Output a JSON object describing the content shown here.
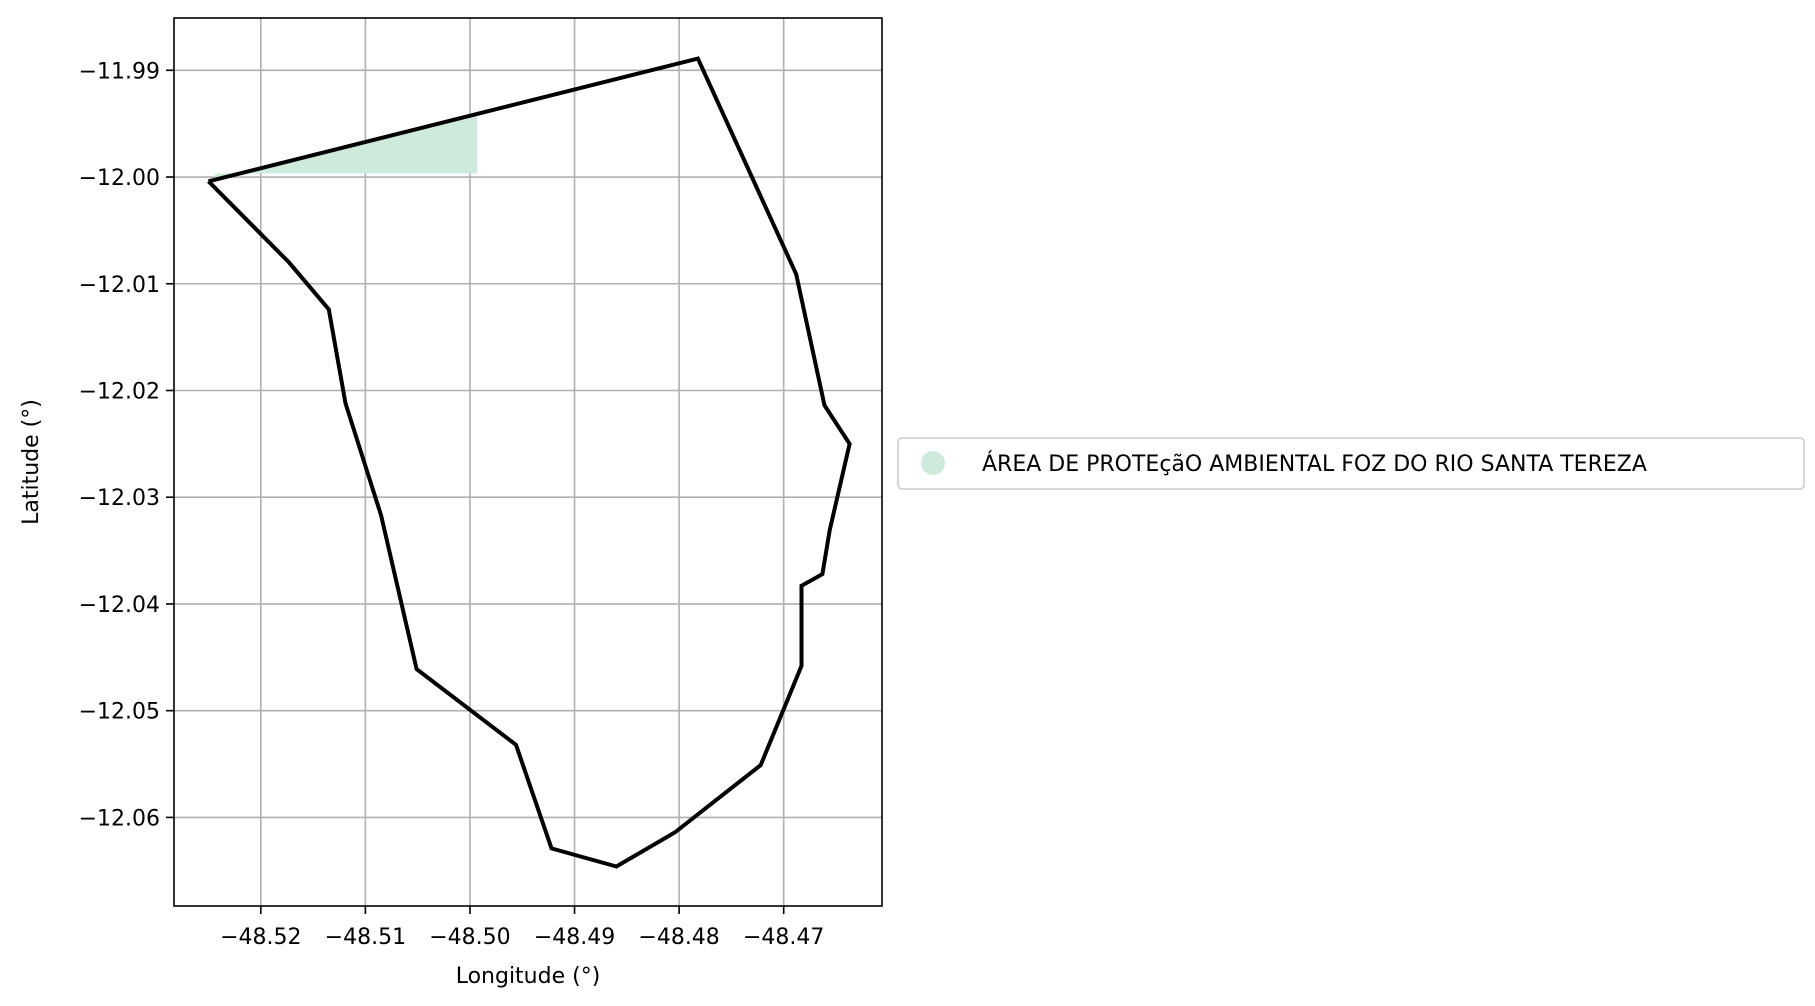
{
  "chart_data": {
    "type": "map",
    "xlabel": "Longitude (°)",
    "ylabel": "Latitude (°)",
    "xlim": [
      -48.5283,
      -48.4606
    ],
    "ylim": [
      -12.0683,
      -11.9851
    ],
    "xticks": [
      -48.52,
      -48.51,
      -48.5,
      -48.49,
      -48.48,
      -48.47
    ],
    "xtick_labels": [
      "−48.52",
      "−48.51",
      "−48.50",
      "−48.49",
      "−48.48",
      "−48.47"
    ],
    "yticks": [
      -11.99,
      -12.0,
      -12.01,
      -12.02,
      -12.03,
      -12.04,
      -12.05,
      -12.06
    ],
    "ytick_labels": [
      "−11.99",
      "−12.00",
      "−12.01",
      "−12.02",
      "−12.03",
      "−12.04",
      "−12.05",
      "−12.06"
    ],
    "grid": true,
    "legend_position": "right",
    "legend": [
      {
        "label": "ÁREA DE PROTEçãO AMBIENTAL FOZ DO RIO SANTA TEREZA",
        "color": "#cdeadd"
      }
    ],
    "boundary": {
      "color": "#000000",
      "points": [
        [
          -48.525,
          -12.0004
        ],
        [
          -48.5173,
          -12.008
        ],
        [
          -48.5135,
          -12.0124
        ],
        [
          -48.5119,
          -12.0212
        ],
        [
          -48.5085,
          -12.0317
        ],
        [
          -48.5051,
          -12.0461
        ],
        [
          -48.4956,
          -12.0532
        ],
        [
          -48.4922,
          -12.0629
        ],
        [
          -48.486,
          -12.0646
        ],
        [
          -48.4804,
          -12.0614
        ],
        [
          -48.4722,
          -12.0551
        ],
        [
          -48.4683,
          -12.0458
        ],
        [
          -48.4683,
          -12.0383
        ],
        [
          -48.4663,
          -12.0372
        ],
        [
          -48.4656,
          -12.0331
        ],
        [
          -48.4637,
          -12.025
        ],
        [
          -48.4661,
          -12.0214
        ],
        [
          -48.4688,
          -12.0091
        ],
        [
          -48.4782,
          -11.9889
        ],
        [
          -48.525,
          -12.0004
        ]
      ]
    },
    "protected_area": {
      "name": "ÁREA DE PROTEçãO AMBIENTAL FOZ DO RIO SANTA TEREZA",
      "color": "#cdeadd",
      "points": [
        [
          -48.5244,
          -11.99967
        ],
        [
          -48.4993,
          -11.99967
        ],
        [
          -48.4993,
          -11.99425
        ],
        [
          -48.5244,
          -12.00025
        ]
      ]
    }
  }
}
